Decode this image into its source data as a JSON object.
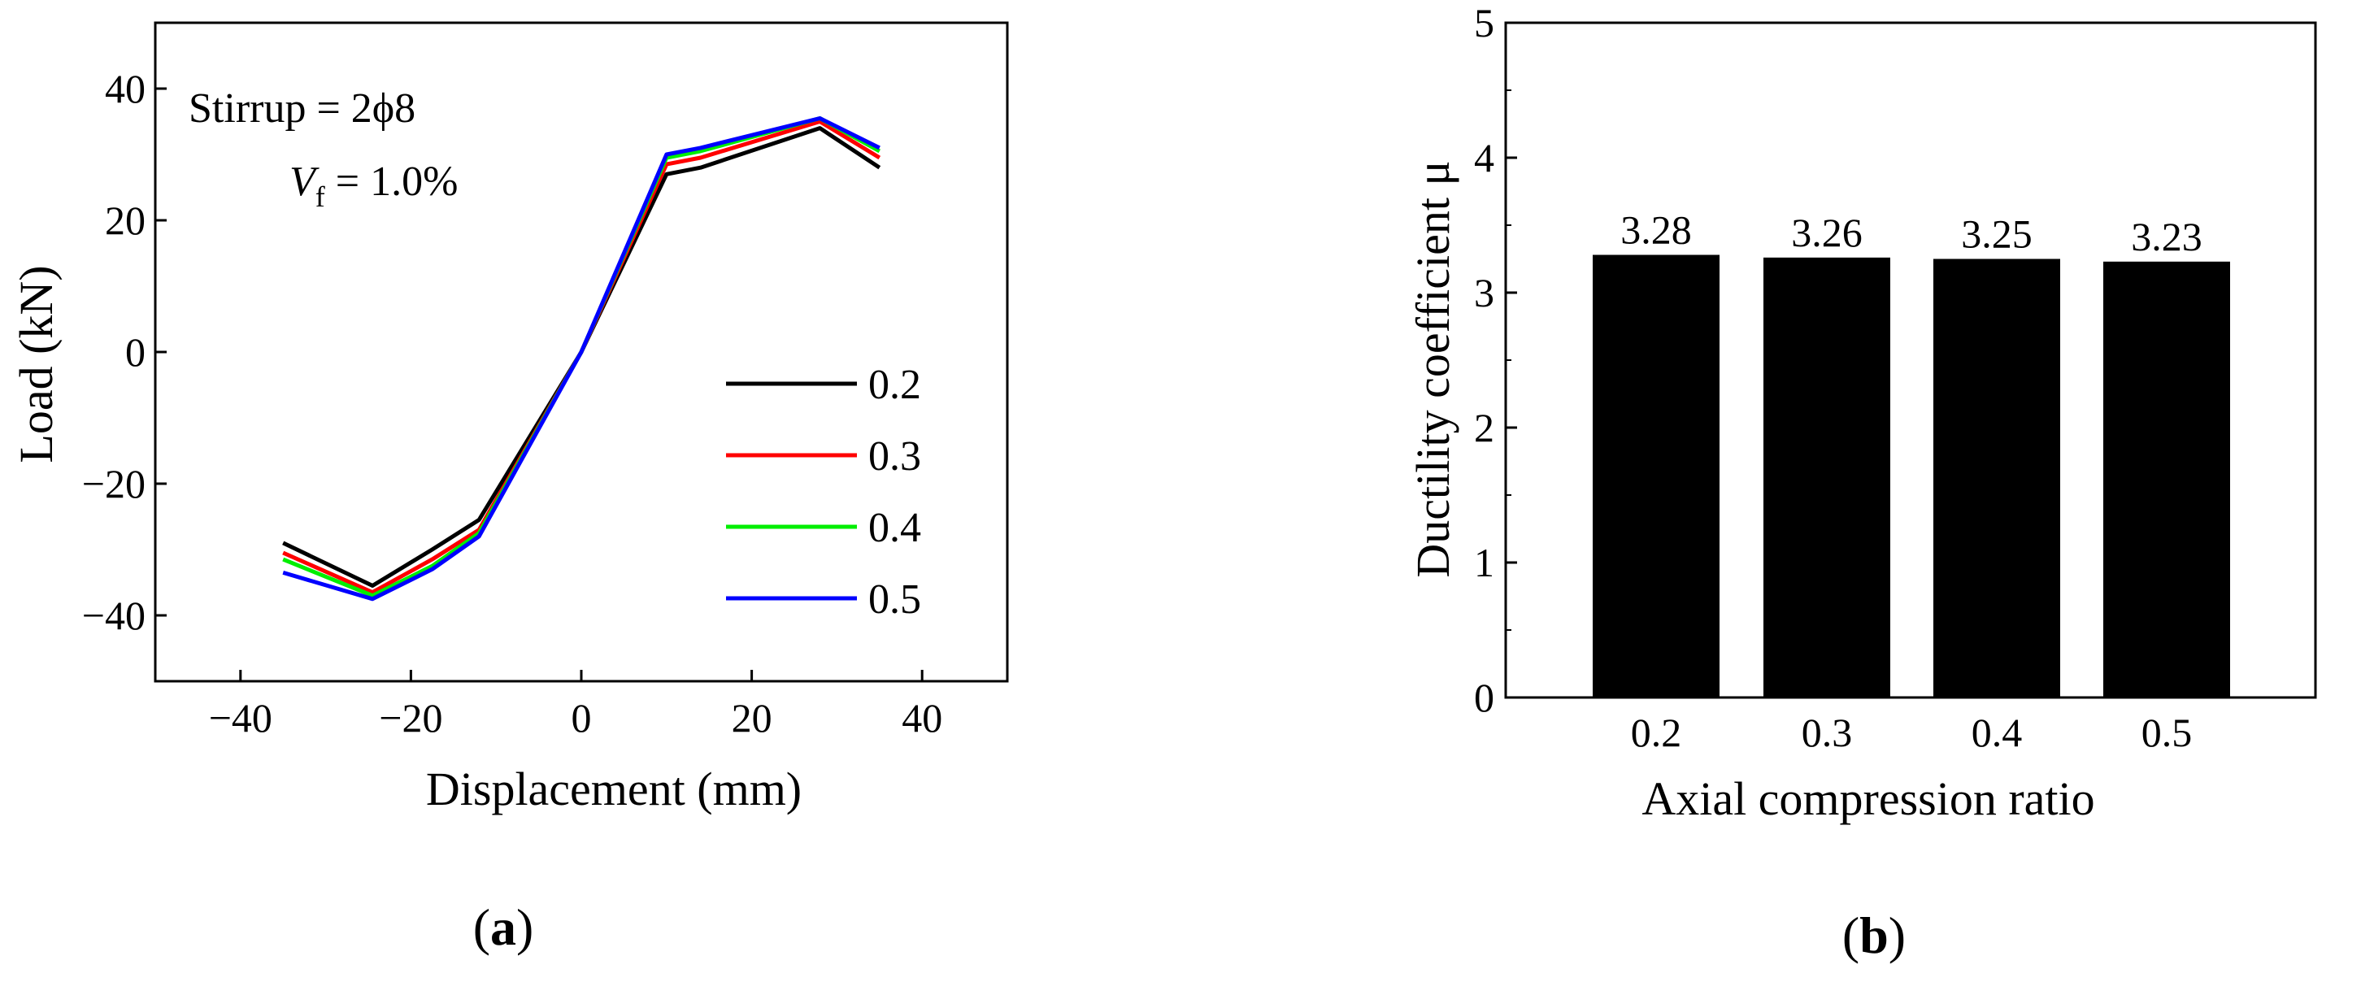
{
  "chart_data": [
    {
      "type": "line",
      "panel_label": "a",
      "xlabel": "Displacement (mm)",
      "ylabel": "Load (kN)",
      "xlim": [
        -50,
        50
      ],
      "ylim": [
        -50,
        50
      ],
      "xticks": [
        -40,
        -20,
        0,
        20,
        40
      ],
      "yticks": [
        -40,
        -20,
        0,
        20,
        40
      ],
      "x_tick_labels": [
        "−40",
        "−20",
        "0",
        "20",
        "40"
      ],
      "y_tick_labels": [
        "−40",
        "−20",
        "0",
        "20",
        "40"
      ],
      "legend_position": "lower-right",
      "annotation": {
        "stirrup": "Stirrup = 2ϕ8",
        "vf_symbol": "V",
        "vf_subscript": "f",
        "vf_value": " = 1.0%"
      },
      "series": [
        {
          "name": "0.2",
          "color": "#000000",
          "x": [
            -35,
            -24.5,
            -17.5,
            -12,
            0,
            10,
            14,
            28,
            35
          ],
          "y": [
            -29,
            -35.5,
            -30,
            -25.5,
            0,
            27,
            28,
            34,
            28
          ]
        },
        {
          "name": "0.3",
          "color": "#ff0000",
          "x": [
            -35,
            -24.5,
            -17.5,
            -12,
            0,
            10,
            14,
            28,
            35
          ],
          "y": [
            -30.5,
            -36.5,
            -31.5,
            -27,
            0,
            28.5,
            29.5,
            35,
            29.5
          ]
        },
        {
          "name": "0.4",
          "color": "#00ee00",
          "x": [
            -35,
            -24.5,
            -17.5,
            -12,
            0,
            10,
            14,
            28,
            35
          ],
          "y": [
            -31.5,
            -37,
            -32.5,
            -27.5,
            0,
            29.5,
            30.5,
            35.5,
            30.5
          ]
        },
        {
          "name": "0.5",
          "color": "#0000ff",
          "x": [
            -35,
            -24.5,
            -17.5,
            -12,
            0,
            10,
            14,
            28,
            35
          ],
          "y": [
            -33.5,
            -37.5,
            -33,
            -28,
            0,
            30,
            31,
            35.5,
            31
          ]
        }
      ]
    },
    {
      "type": "bar",
      "panel_label": "b",
      "categories": [
        "0.2",
        "0.3",
        "0.4",
        "0.5"
      ],
      "values": [
        3.28,
        3.26,
        3.25,
        3.23
      ],
      "data_labels": [
        "3.28",
        "3.26",
        "3.25",
        "3.23"
      ],
      "bar_color": "#000000",
      "xlabel": "Axial compression ratio",
      "ylabel": "Ductility coefficient μ",
      "ylim": [
        0,
        5
      ],
      "yticks": [
        0,
        1,
        2,
        3,
        4,
        5
      ],
      "y_tick_labels": [
        "0",
        "1",
        "2",
        "3",
        "4",
        "5"
      ]
    }
  ]
}
